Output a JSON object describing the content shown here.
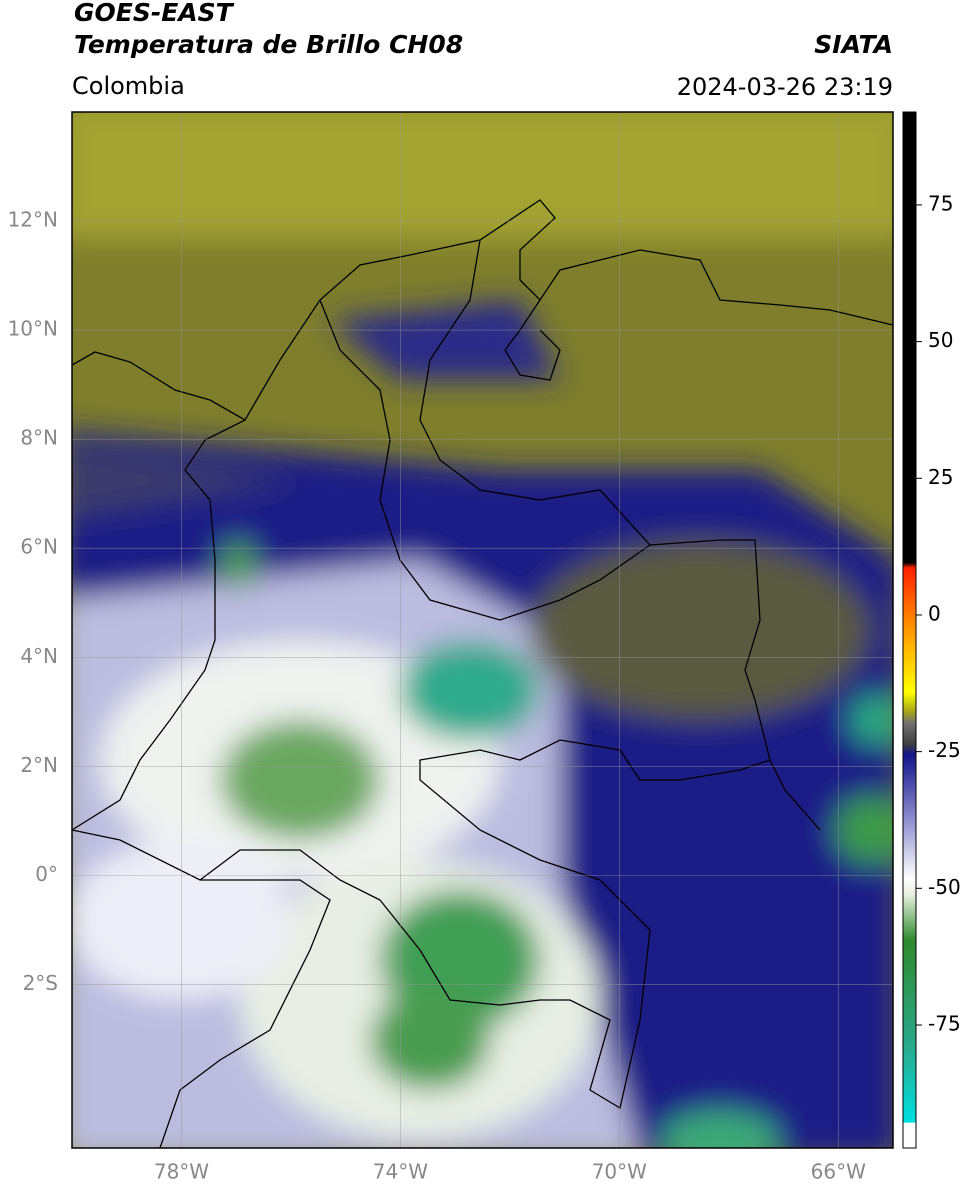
{
  "header": {
    "title_lines": [
      "GOES-EAST",
      "Temperatura de Brillo CH08"
    ],
    "region": "Colombia",
    "source": "SIATA",
    "datetime": "2024-03-26 23:19"
  },
  "map": {
    "lon_range": [
      -80,
      -65
    ],
    "lat_range": [
      -5,
      14
    ],
    "lon_ticks": [
      {
        "value": -78,
        "label": "78°W"
      },
      {
        "value": -74,
        "label": "74°W"
      },
      {
        "value": -70,
        "label": "70°W"
      },
      {
        "value": -66,
        "label": "66°W"
      }
    ],
    "lat_ticks": [
      {
        "value": 12,
        "label": "12°N"
      },
      {
        "value": 10,
        "label": "10°N"
      },
      {
        "value": 8,
        "label": "8°N"
      },
      {
        "value": 6,
        "label": "6°N"
      },
      {
        "value": 4,
        "label": "4°N"
      },
      {
        "value": 2,
        "label": "2°N"
      },
      {
        "value": 0,
        "label": "0°"
      },
      {
        "value": -2,
        "label": "2°S"
      }
    ]
  },
  "colorbar": {
    "range": [
      -97.5,
      92
    ],
    "ticks": [
      75,
      50,
      25,
      0,
      -25,
      -50,
      -75
    ]
  }
}
